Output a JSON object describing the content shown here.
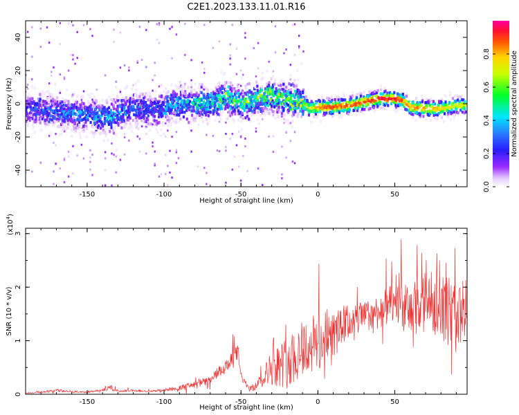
{
  "title": "C2E1.2023.133.11.01.R16",
  "chart_data": [
    {
      "type": "heatmap",
      "xlabel": "Height of straight line (km)",
      "ylabel": "Frequency (Hz)",
      "xlim": [
        -190,
        97
      ],
      "ylim": [
        -50,
        50
      ],
      "x_ticks": [
        -150,
        -100,
        -50,
        0,
        50
      ],
      "y_ticks": [
        -40,
        -20,
        0,
        20,
        40
      ],
      "colorbar": {
        "label": "Normalized spectral amplitude",
        "range": [
          0,
          1
        ],
        "ticks": [
          0.0,
          0.2,
          0.4,
          0.6,
          0.8
        ],
        "tick_labels": [
          "0.0",
          "0.2",
          "0.4",
          "0.6",
          "0.8"
        ],
        "colormap": "rainbow (white → violet → blue → cyan → green → yellow → orange → red → magenta)"
      },
      "ridge": {
        "description": "Frequency center of the spectral band vs height",
        "x": [
          -190,
          -170,
          -150,
          -135,
          -120,
          -105,
          -95,
          -80,
          -65,
          -60,
          -55,
          -50,
          -40,
          -30,
          -20,
          -10,
          -5,
          0,
          10,
          20,
          30,
          40,
          50,
          55,
          60,
          70,
          80,
          90,
          97
        ],
        "y": [
          -3,
          -5,
          -7,
          -8,
          -3,
          -5,
          0,
          0,
          1,
          5,
          2,
          0,
          3,
          5,
          2,
          1,
          -3,
          -2,
          -2,
          -1,
          1,
          3,
          3,
          2,
          -2,
          -3,
          -3,
          -1,
          -1
        ],
        "peak_amplitude": [
          0.25,
          0.3,
          0.35,
          0.4,
          0.3,
          0.3,
          0.4,
          0.45,
          0.5,
          0.6,
          0.55,
          0.55,
          0.6,
          0.6,
          0.6,
          0.65,
          0.7,
          0.85,
          0.9,
          0.9,
          0.9,
          0.95,
          0.95,
          0.9,
          0.85,
          0.85,
          0.8,
          0.7,
          0.7
        ]
      }
    },
    {
      "type": "line",
      "xlabel": "Height of straight line (km)",
      "ylabel": "SNR (10 * v/v)",
      "y_multiplier_label": "(x10",
      "y_multiplier_exp": "4",
      "y_multiplier_close": ")",
      "xlim": [
        -190,
        97
      ],
      "ylim": [
        0,
        3.1
      ],
      "x_ticks": [
        -150,
        -100,
        -50,
        0,
        50
      ],
      "y_ticks": [
        0,
        1,
        2,
        3
      ],
      "color": "#ef2f2f",
      "series": [
        {
          "x": [
            -190,
            -180,
            -170,
            -160,
            -150,
            -140,
            -135,
            -130,
            -120,
            -110,
            -100,
            -90,
            -80,
            -75,
            -70,
            -65,
            -60,
            -55,
            -52,
            -50,
            -45,
            -40,
            -35,
            -30,
            -20,
            -10,
            0,
            10,
            20,
            30,
            40,
            50,
            60,
            65,
            70,
            80,
            90,
            97
          ],
          "y": [
            0.02,
            0.04,
            0.07,
            0.05,
            0.04,
            0.08,
            0.12,
            0.06,
            0.07,
            0.05,
            0.08,
            0.12,
            0.18,
            0.22,
            0.25,
            0.4,
            0.5,
            0.65,
            0.8,
            0.35,
            0.1,
            0.15,
            0.35,
            0.5,
            0.6,
            0.85,
            0.95,
            1.1,
            1.35,
            1.45,
            1.55,
            1.7,
            1.55,
            1.5,
            1.75,
            1.65,
            1.45,
            1.6
          ],
          "spike_amplitude": [
            0.02,
            0.03,
            0.05,
            0.03,
            0.03,
            0.05,
            0.08,
            0.04,
            0.04,
            0.03,
            0.05,
            0.08,
            0.12,
            0.15,
            0.15,
            0.2,
            0.25,
            0.3,
            0.3,
            0.15,
            0.08,
            0.15,
            0.35,
            0.6,
            0.9,
            1.0,
            1.1,
            0.8,
            0.6,
            0.5,
            0.6,
            0.7,
            0.9,
            1.3,
            1.0,
            1.1,
            1.3,
            1.0
          ]
        }
      ]
    }
  ]
}
